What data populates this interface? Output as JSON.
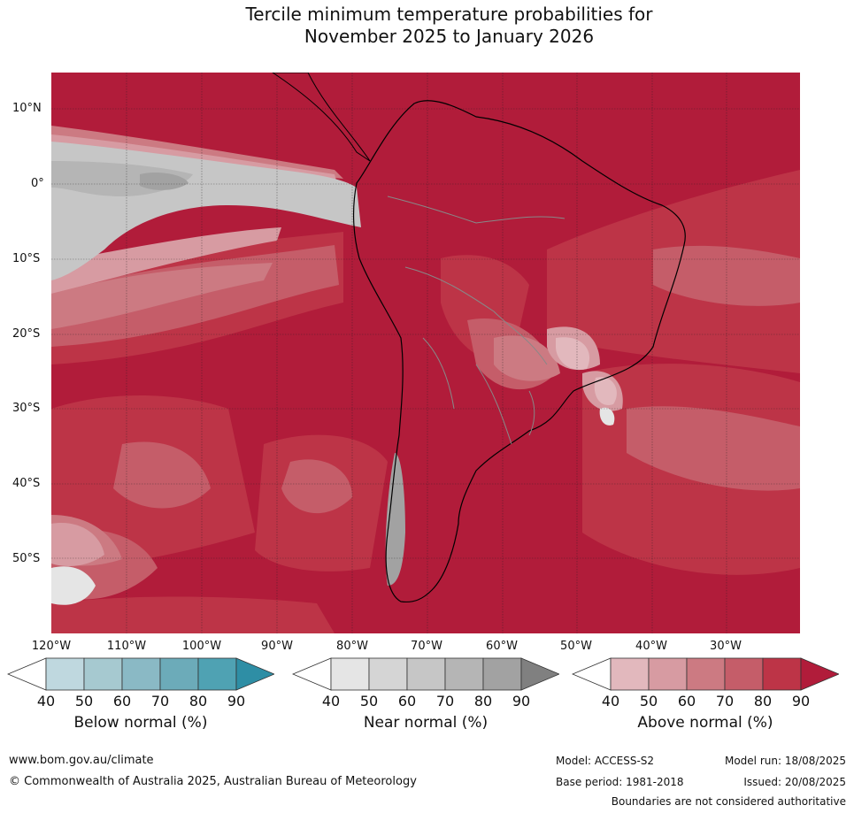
{
  "title": {
    "line1": "Tercile minimum temperature probabilities for",
    "line2": "November 2025 to January 2026"
  },
  "map": {
    "region": "South America and surrounding oceans",
    "lat_labels": [
      "10°N",
      "0°",
      "10°S",
      "20°S",
      "30°S",
      "40°S",
      "50°S"
    ],
    "lon_labels": [
      "120°W",
      "110°W",
      "100°W",
      "90°W",
      "80°W",
      "70°W",
      "60°W",
      "50°W",
      "40°W",
      "30°W"
    ]
  },
  "colorbars": [
    {
      "label": "Below normal (%)",
      "ticks": [
        "40",
        "50",
        "60",
        "70",
        "80",
        "90"
      ],
      "colors": [
        "#ffffff",
        "#bfd8df",
        "#a6c9d0",
        "#8ab9c5",
        "#6cabb9",
        "#4fa2b3",
        "#2e8ea5"
      ]
    },
    {
      "label": "Near normal (%)",
      "ticks": [
        "40",
        "50",
        "60",
        "70",
        "80",
        "90"
      ],
      "colors": [
        "#ffffff",
        "#e5e5e5",
        "#d5d5d5",
        "#c6c6c6",
        "#b5b5b5",
        "#a2a2a2",
        "#808080"
      ]
    },
    {
      "label": "Above normal (%)",
      "ticks": [
        "40",
        "50",
        "60",
        "70",
        "80",
        "90"
      ],
      "colors": [
        "#ffffff",
        "#e2b8bd",
        "#d79ba2",
        "#cc7a82",
        "#c55d69",
        "#bd3447",
        "#b11c3a"
      ]
    }
  ],
  "footer": {
    "website": "www.bom.gov.au/climate",
    "copyright": "© Commonwealth of Australia 2025, Australian Bureau of Meteorology",
    "model": "Model: ACCESS-S2",
    "base_period": "Base period: 1981-2018",
    "model_run": "Model run: 18/08/2025",
    "issued": "Issued: 20/08/2025",
    "disclaimer": "Boundaries are not considered authoritative"
  }
}
